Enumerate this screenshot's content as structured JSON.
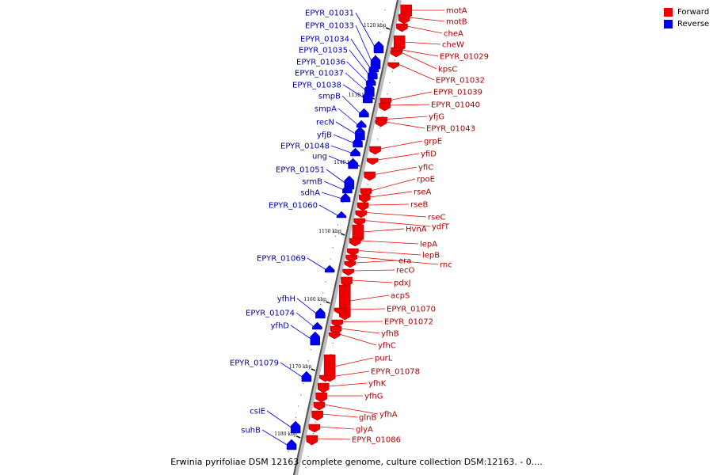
{
  "legend": {
    "forward_label": "Forward",
    "reverse_label": "Reverse",
    "forward_color": "#ee0000",
    "reverse_color": "#0000ee"
  },
  "caption": "Erwinia pyrifoliae DSM 12163 complete genome, culture collection DSM:12163. - 0....",
  "ticks": [
    "1120 kbp",
    "1130 kbp",
    "1140 kbp",
    "1150 kbp",
    "1160 kbp",
    "1170 kbp",
    "1180 kbp"
  ],
  "reverse_genes": [
    "EPYR_01031",
    "EPYR_01033",
    "EPYR_01034",
    "EPYR_01035",
    "EPYR_01036",
    "EPYR_01037",
    "EPYR_01038",
    "smpB",
    "smpA",
    "recN",
    "yfjB",
    "EPYR_01048",
    "ung",
    "EPYR_01051",
    "srmB",
    "sdhA",
    "EPYR_01060",
    "EPYR_01069",
    "yfhH",
    "EPYR_01074",
    "yfhD",
    "EPYR_01079",
    "csiE",
    "suhB"
  ],
  "forward_genes": [
    "motA",
    "motB",
    "cheA",
    "cheW",
    "EPYR_01029",
    "kpsC",
    "EPYR_01032",
    "EPYR_01039",
    "EPYR_01040",
    "yfjG",
    "EPYR_01043",
    "grpE",
    "yfiD",
    "yfiC",
    "rpoE",
    "rseA",
    "rseB",
    "rseC",
    "ydfT",
    "HvnA",
    "lepA",
    "lepB",
    "rnc",
    "era",
    "recO",
    "pdxJ",
    "acpS",
    "EPYR_01070",
    "EPYR_01072",
    "yfhB",
    "yfhC",
    "purL",
    "EPYR_01078",
    "yfhK",
    "yfhG",
    "yfhA",
    "glnB",
    "glyA",
    "EPYR_01086"
  ]
}
